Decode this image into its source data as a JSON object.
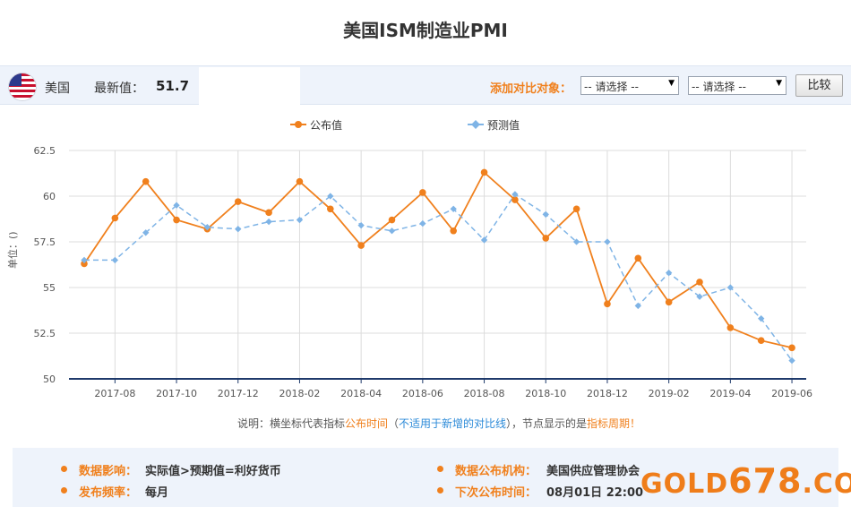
{
  "page": {
    "title": "美国ISM制造业PMI"
  },
  "info_bar": {
    "country": "美国",
    "latest_label": "最新值：",
    "latest_value": "51.7",
    "compare_label": "添加对比对象：",
    "select1": "-- 请选择 --",
    "select2": "-- 请选择 --",
    "compare_button": "比较"
  },
  "note": {
    "prefix": "说明：横坐标代表指标",
    "time": "公布时间",
    "paren_open": "（",
    "not_applicable": "不适用于新增的对比线",
    "paren_close": "）",
    "middle": "，节点显示的是",
    "period": "指标周期！"
  },
  "details": {
    "impact_key": "数据影响：",
    "impact_value": "实际值>预期值=利好货币",
    "frequency_key": "发布频率：",
    "frequency_value": "每月",
    "agency_key": "数据公布机构：",
    "agency_value": "美国供应管理协会",
    "next_key": "下次公布时间：",
    "next_value": "08月01日 22:00"
  },
  "watermark": {
    "prefix": "GOLD",
    "number": "678",
    "suffix": ".COM"
  },
  "colors": {
    "published": "#f0801d",
    "forecast": "#7fb4e6",
    "accent": "#f0801d",
    "link": "#2b8ad8"
  },
  "chart_data": {
    "type": "line",
    "ylabel": "单位：()",
    "ylim": [
      50,
      62.5
    ],
    "yticks": [
      "50",
      "52.5",
      "55",
      "57.5",
      "60",
      "62.5"
    ],
    "x": [
      "2017-07",
      "2017-08",
      "2017-09",
      "2017-10",
      "2017-11",
      "2017-12",
      "2018-01",
      "2018-02",
      "2018-03",
      "2018-04",
      "2018-05",
      "2018-06",
      "2018-07",
      "2018-08",
      "2018-09",
      "2018-10",
      "2018-11",
      "2018-12",
      "2019-01",
      "2019-02",
      "2019-03",
      "2019-04",
      "2019-05",
      "2019-06",
      "2019-07"
    ],
    "xtick_labels": [
      "2017-08",
      "2017-10",
      "2017-12",
      "2018-02",
      "2018-04",
      "2018-06",
      "2018-08",
      "2018-10",
      "2018-12",
      "2019-02",
      "2019-04",
      "2019-06"
    ],
    "legend_position": "top-center",
    "grid": true,
    "series": [
      {
        "name": "公布值",
        "style": "solid",
        "color": "#f0801d",
        "values": [
          56.3,
          58.8,
          60.8,
          58.7,
          58.2,
          59.7,
          59.1,
          60.8,
          59.3,
          57.3,
          58.7,
          60.2,
          58.1,
          61.3,
          59.8,
          57.7,
          59.3,
          54.1,
          56.6,
          54.2,
          55.3,
          52.8,
          52.1,
          51.7,
          null
        ]
      },
      {
        "name": "预测值",
        "style": "dashed",
        "color": "#7fb4e6",
        "values": [
          56.5,
          56.5,
          58.0,
          59.5,
          58.3,
          58.2,
          58.6,
          58.7,
          60.0,
          58.4,
          58.1,
          58.5,
          59.3,
          57.6,
          60.1,
          59.0,
          57.5,
          57.5,
          54.0,
          55.8,
          54.5,
          55.0,
          53.3,
          51.0,
          null
        ]
      }
    ]
  }
}
